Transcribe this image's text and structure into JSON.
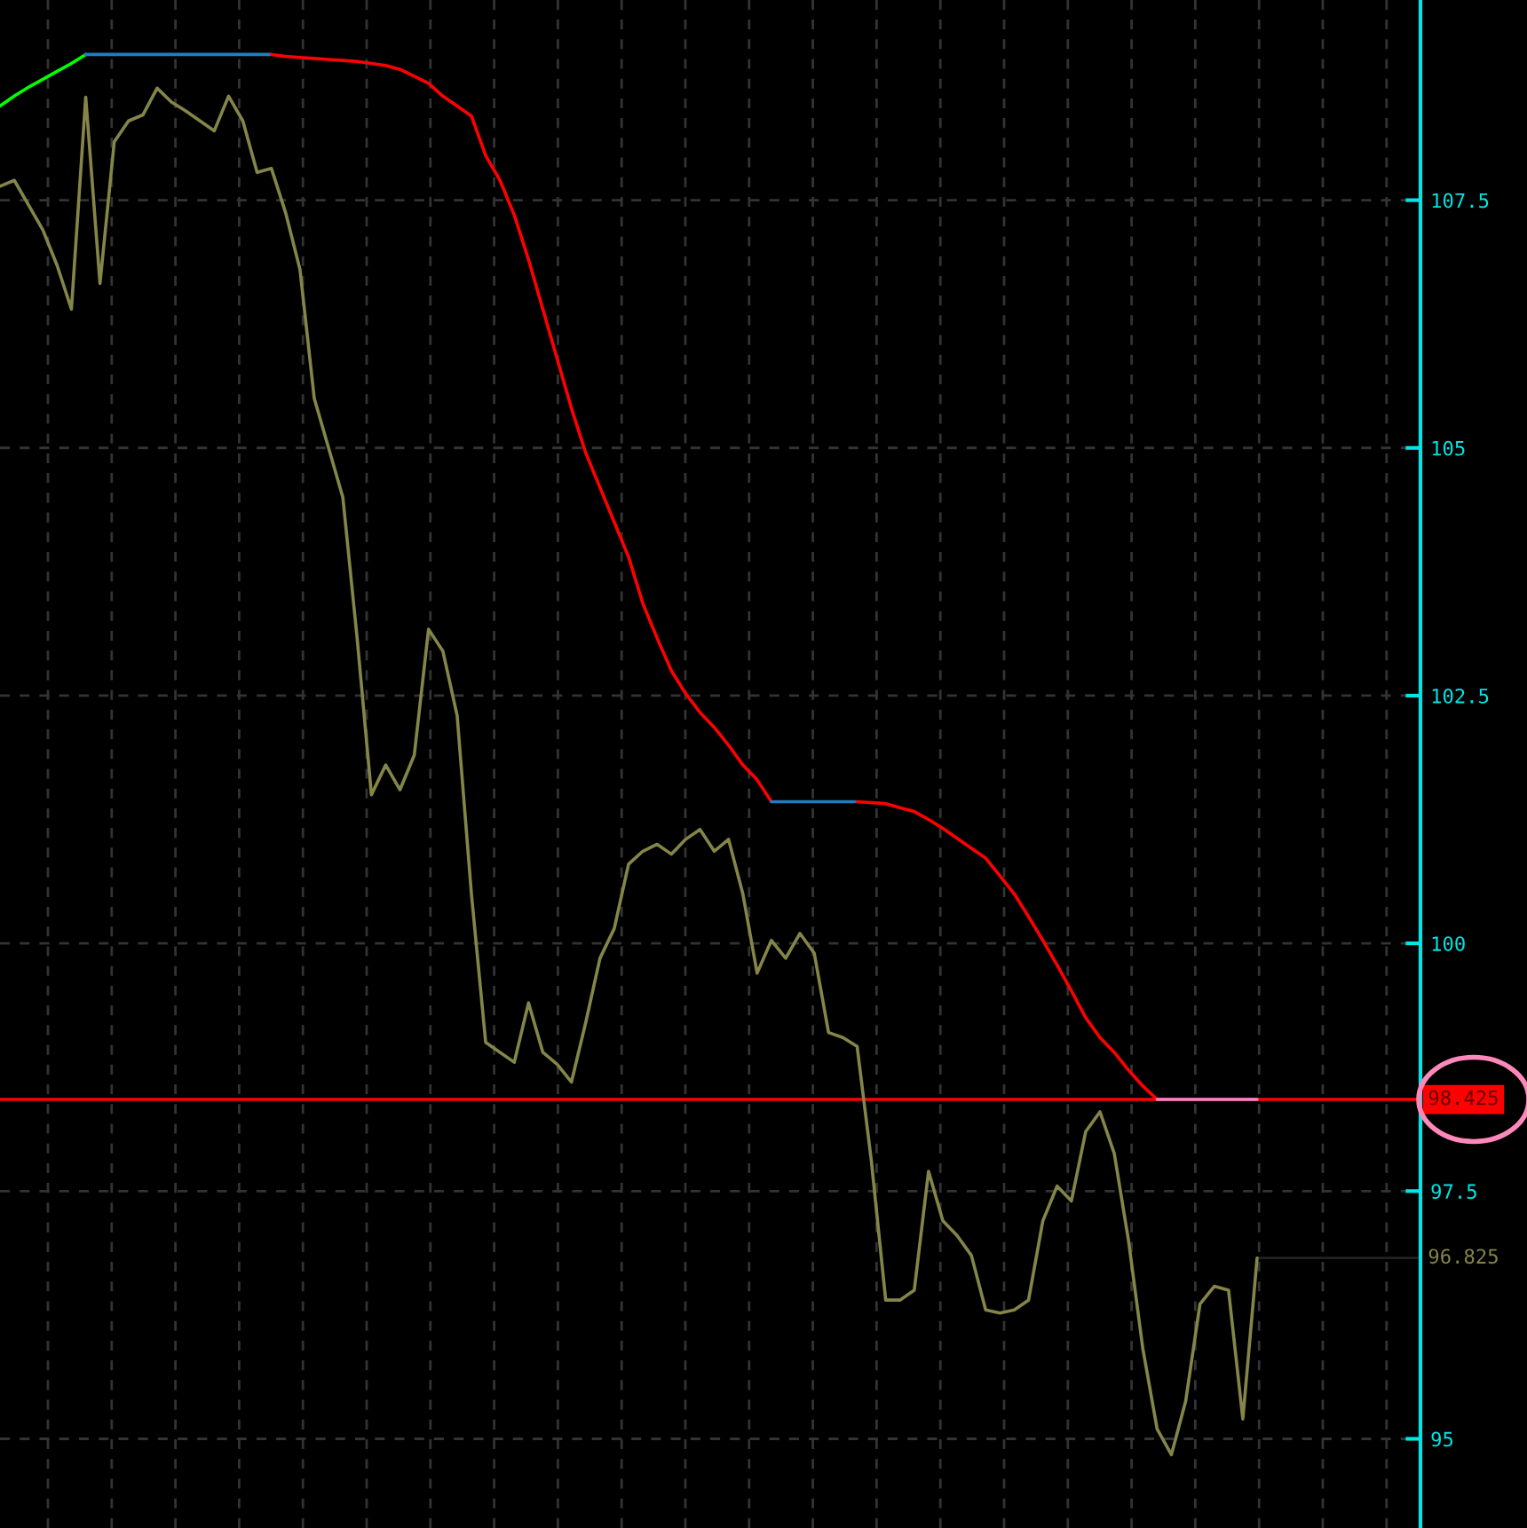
{
  "chart_data": {
    "type": "line",
    "categories": [
      null,
      null,
      null,
      null,
      null,
      null,
      null,
      null,
      null,
      null,
      null,
      null,
      null,
      null,
      null,
      null,
      null,
      null,
      null,
      null,
      null,
      null,
      null,
      null,
      null,
      null,
      null,
      null,
      null,
      null,
      null,
      null,
      null,
      null,
      null,
      null,
      null,
      null,
      null,
      null,
      null,
      null,
      null,
      null,
      null,
      null,
      null,
      null,
      null,
      null,
      null,
      null,
      null,
      null,
      null,
      null,
      null,
      null,
      null,
      null,
      null,
      null,
      null,
      null,
      null,
      null,
      null,
      null,
      null,
      null,
      null,
      null,
      null,
      null,
      null,
      null,
      null,
      null,
      null,
      null,
      null,
      null,
      null,
      null,
      null,
      null,
      null,
      null,
      null
    ],
    "ylim": [
      94.1,
      109.52
    ],
    "yticks": [
      95,
      97.5,
      100,
      102.5,
      105,
      107.5
    ],
    "tick_labels": "y",
    "grid": true,
    "line_style": "solid",
    "marker": "none",
    "series": [
      {
        "color": "#85854a",
        "values": [
          107.64,
          107.7,
          107.45,
          107.2,
          106.84,
          106.4,
          108.54,
          106.66,
          108.09,
          108.3,
          108.36,
          108.63,
          108.49,
          108.4,
          108.3,
          108.2,
          108.55,
          108.3,
          107.78,
          107.82,
          107.37,
          106.8,
          105.5,
          105.0,
          104.5,
          103.08,
          101.5,
          101.8,
          101.55,
          101.9,
          103.17,
          102.95,
          102.3,
          100.5,
          99.0,
          98.9,
          98.8,
          99.4,
          98.9,
          98.78,
          98.6,
          99.2,
          99.85,
          100.15,
          100.8,
          100.93,
          101.0,
          100.9,
          101.05,
          101.15,
          100.93,
          101.05,
          100.5,
          99.7,
          100.03,
          99.85,
          100.1,
          99.9,
          99.1,
          99.05,
          98.96,
          97.8,
          96.4,
          96.4,
          96.5,
          97.7,
          97.2,
          97.05,
          96.85,
          96.3,
          96.27,
          96.3,
          96.4,
          97.2,
          97.55,
          97.4,
          98.1,
          98.3,
          97.88,
          97.0,
          95.91,
          95.1,
          94.84,
          95.38,
          96.36,
          96.54,
          96.5,
          95.2,
          96.825
        ]
      },
      {
        "color": "#00ff00",
        "values": [
          108.45,
          108.55,
          108.64,
          108.72,
          108.8,
          108.88,
          108.97,
          null,
          null,
          null,
          null,
          null,
          null,
          null,
          null,
          null,
          null,
          null,
          null,
          null,
          null,
          null,
          null,
          null,
          null,
          null,
          null,
          null,
          null,
          null,
          null,
          null,
          null,
          null,
          null,
          null,
          null,
          null,
          null,
          null,
          null,
          null,
          null,
          null,
          null,
          null,
          null,
          null,
          null,
          null,
          null,
          null,
          null,
          null,
          null,
          null,
          null,
          null,
          null,
          null,
          null,
          null,
          null,
          null,
          null,
          null,
          null,
          null,
          null,
          null,
          null,
          null,
          null,
          null,
          null,
          null,
          null,
          null,
          null,
          null,
          null,
          null,
          null,
          null,
          null,
          null,
          null,
          null,
          null
        ]
      },
      {
        "color": "#1e7fc0",
        "values": [
          null,
          null,
          null,
          null,
          null,
          null,
          108.97,
          108.97,
          108.97,
          108.97,
          108.97,
          108.97,
          108.97,
          108.97,
          108.97,
          108.97,
          108.97,
          108.97,
          108.97,
          108.97,
          null,
          null,
          null,
          null,
          null,
          null,
          null,
          null,
          null,
          null,
          null,
          null,
          null,
          null,
          null,
          null,
          null,
          null,
          null,
          null,
          null,
          null,
          null,
          null,
          null,
          null,
          null,
          null,
          null,
          null,
          null,
          null,
          null,
          null,
          null,
          null,
          null,
          null,
          null,
          null,
          null,
          null,
          null,
          null,
          null,
          null,
          null,
          null,
          null,
          null,
          null,
          null,
          null,
          null,
          null,
          null,
          null,
          null,
          null,
          null,
          null,
          null,
          null,
          null,
          null,
          null,
          null,
          null,
          null
        ]
      },
      {
        "color": "#ff0000",
        "values": [
          null,
          null,
          null,
          null,
          null,
          null,
          null,
          null,
          null,
          null,
          null,
          null,
          null,
          null,
          null,
          null,
          null,
          null,
          null,
          108.97,
          108.95,
          108.94,
          108.93,
          108.92,
          108.91,
          108.9,
          108.88,
          108.86,
          108.82,
          108.75,
          108.68,
          108.55,
          108.45,
          108.35,
          107.95,
          107.7,
          107.35,
          106.9,
          106.4,
          105.9,
          105.4,
          104.95,
          104.6,
          104.25,
          103.9,
          103.43,
          103.08,
          102.75,
          102.52,
          102.33,
          102.18,
          102.0,
          101.8,
          101.65,
          101.43,
          null,
          null,
          null,
          null,
          null,
          null,
          null,
          null,
          null,
          null,
          null,
          null,
          null,
          null,
          null,
          null,
          null,
          null,
          null,
          null,
          null,
          null,
          null,
          null,
          null,
          null,
          null,
          null,
          null,
          null,
          null,
          null,
          null,
          null
        ]
      },
      {
        "color": "#1e7fc0",
        "values": [
          null,
          null,
          null,
          null,
          null,
          null,
          null,
          null,
          null,
          null,
          null,
          null,
          null,
          null,
          null,
          null,
          null,
          null,
          null,
          null,
          null,
          null,
          null,
          null,
          null,
          null,
          null,
          null,
          null,
          null,
          null,
          null,
          null,
          null,
          null,
          null,
          null,
          null,
          null,
          null,
          null,
          null,
          null,
          null,
          null,
          null,
          null,
          null,
          null,
          null,
          null,
          null,
          null,
          null,
          101.43,
          101.43,
          101.43,
          101.43,
          101.43,
          101.43,
          101.43,
          null,
          null,
          null,
          null,
          null,
          null,
          null,
          null,
          null,
          null,
          null,
          null,
          null,
          null,
          null,
          null,
          null,
          null,
          null,
          null,
          null,
          null,
          null,
          null,
          null,
          null,
          null,
          null
        ]
      },
      {
        "color": "#ff0000",
        "values": [
          null,
          null,
          null,
          null,
          null,
          null,
          null,
          null,
          null,
          null,
          null,
          null,
          null,
          null,
          null,
          null,
          null,
          null,
          null,
          null,
          null,
          null,
          null,
          null,
          null,
          null,
          null,
          null,
          null,
          null,
          null,
          null,
          null,
          null,
          null,
          null,
          null,
          null,
          null,
          null,
          null,
          null,
          null,
          null,
          null,
          null,
          null,
          null,
          null,
          null,
          null,
          null,
          null,
          null,
          null,
          null,
          null,
          null,
          null,
          null,
          101.43,
          101.42,
          101.41,
          101.37,
          101.33,
          101.25,
          101.16,
          101.06,
          100.96,
          100.86,
          100.68,
          100.5,
          100.27,
          100.03,
          99.78,
          99.52,
          99.25,
          99.05,
          98.9,
          98.72,
          98.56,
          98.425,
          null,
          null,
          null,
          null,
          null,
          null,
          null
        ]
      },
      {
        "color": "#ee88cc",
        "values": [
          null,
          null,
          null,
          null,
          null,
          null,
          null,
          null,
          null,
          null,
          null,
          null,
          null,
          null,
          null,
          null,
          null,
          null,
          null,
          null,
          null,
          null,
          null,
          null,
          null,
          null,
          null,
          null,
          null,
          null,
          null,
          null,
          null,
          null,
          null,
          null,
          null,
          null,
          null,
          null,
          null,
          null,
          null,
          null,
          null,
          null,
          null,
          null,
          null,
          null,
          null,
          null,
          null,
          null,
          null,
          null,
          null,
          null,
          null,
          null,
          null,
          null,
          null,
          null,
          null,
          null,
          null,
          null,
          null,
          null,
          null,
          null,
          null,
          null,
          null,
          null,
          null,
          null,
          null,
          null,
          null,
          98.425,
          98.425,
          98.425,
          98.425,
          98.425,
          98.425,
          98.425,
          98.425
        ]
      }
    ],
    "ref_lines": [
      {
        "axis": "y",
        "value": 98.425,
        "label": "98.425",
        "color": "#ff0000"
      }
    ],
    "annotations": [
      "96.825"
    ]
  }
}
